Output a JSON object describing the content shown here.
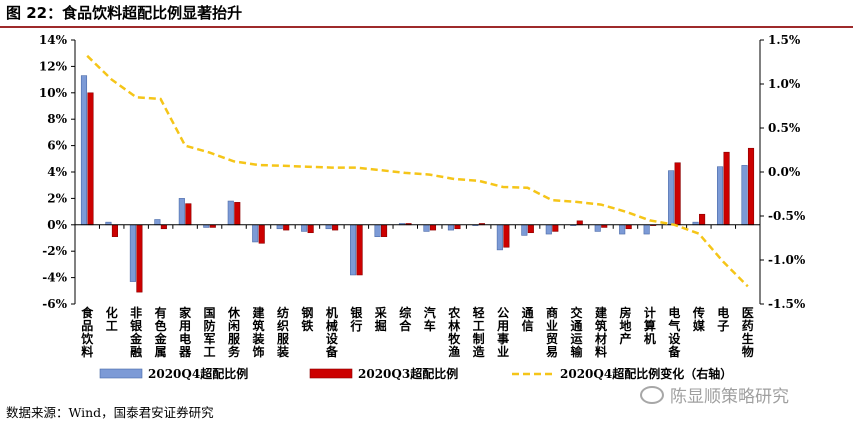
{
  "title": "图 22：食品饮料超配比例显著抬升",
  "source": "数据来源：Wind，国泰君安证券研究",
  "watermark": "陈显顺策略研究",
  "colors": {
    "bar_q4": "#7c9ad6",
    "bar_q3": "#cc0000",
    "line": "#f5c518",
    "title_rule": "#9e2a2b"
  },
  "chart_data": {
    "type": "bar",
    "title": "",
    "categories": [
      "食品饮料",
      "化工",
      "非银金融",
      "有色金属",
      "家用电器",
      "国防军工",
      "休闲服务",
      "建筑装饰",
      "纺织服装",
      "钢铁",
      "机械设备",
      "银行",
      "采掘",
      "综合",
      "汽车",
      "农林牧渔",
      "轻工制造",
      "公用事业",
      "通信",
      "商业贸易",
      "交通运输",
      "建筑材料",
      "房地产",
      "计算机",
      "电气设备",
      "传媒",
      "电子",
      "医药生物"
    ],
    "left_axis": {
      "min": -6,
      "max": 14,
      "step": 2,
      "ticks": [
        "-6%",
        "-4%",
        "-2%",
        "0%",
        "2%",
        "4%",
        "6%",
        "8%",
        "10%",
        "12%",
        "14%"
      ]
    },
    "right_axis": {
      "min": -1.5,
      "max": 1.5,
      "step": 0.5,
      "ticks": [
        "-1.5%",
        "-1.0%",
        "-0.5%",
        "0.0%",
        "0.5%",
        "1.0%",
        "1.5%"
      ]
    },
    "series": [
      {
        "name": "2020Q4超配比例",
        "type": "bar",
        "axis": "left",
        "values": [
          11.3,
          0.2,
          -4.3,
          0.4,
          2.0,
          -0.2,
          1.8,
          -1.3,
          -0.3,
          -0.5,
          -0.3,
          -3.8,
          -0.9,
          0.1,
          -0.5,
          -0.4,
          0.0,
          -1.9,
          -0.8,
          -0.7,
          0.0,
          -0.5,
          -0.7,
          -0.7,
          4.1,
          0.2,
          4.4,
          4.5
        ]
      },
      {
        "name": "2020Q3超配比例",
        "type": "bar",
        "axis": "left",
        "values": [
          10.0,
          -0.9,
          -5.1,
          -0.3,
          1.6,
          -0.2,
          1.7,
          -1.4,
          -0.4,
          -0.6,
          -0.4,
          -3.8,
          -0.9,
          0.1,
          -0.4,
          -0.3,
          0.1,
          -1.7,
          -0.6,
          -0.5,
          0.3,
          -0.2,
          -0.3,
          0.0,
          4.7,
          0.8,
          5.5,
          5.8
        ]
      },
      {
        "name": "2020Q4超配比例变化（右轴）",
        "type": "line",
        "axis": "right",
        "style": "dashed",
        "values": [
          1.32,
          1.05,
          0.85,
          0.83,
          0.3,
          0.22,
          0.12,
          0.08,
          0.07,
          0.06,
          0.05,
          0.05,
          0.02,
          -0.01,
          -0.03,
          -0.08,
          -0.1,
          -0.17,
          -0.18,
          -0.32,
          -0.34,
          -0.37,
          -0.45,
          -0.55,
          -0.6,
          -0.7,
          -1.02,
          -1.3
        ]
      }
    ],
    "legend": {
      "placement": "bottom"
    }
  }
}
